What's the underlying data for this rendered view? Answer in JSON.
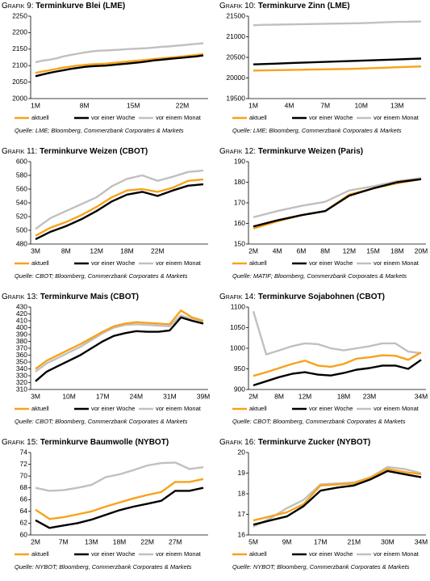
{
  "chart_data": [
    {
      "type": "line",
      "label": "Grafik 9:",
      "title": "Terminkurve Blei (LME)",
      "categories": [
        "1M",
        null,
        null,
        null,
        null,
        null,
        null,
        "8M",
        null,
        null,
        null,
        null,
        null,
        null,
        "15M",
        null,
        null,
        null,
        null,
        null,
        null,
        "22M",
        null,
        null,
        null
      ],
      "series": [
        {
          "name": "aktuell",
          "color": "#f7a21b",
          "values": [
            2078,
            2082,
            2086,
            2090,
            2094,
            2097,
            2100,
            2102,
            2104,
            2105,
            2106,
            2108,
            2110,
            2112,
            2114,
            2116,
            2118,
            2120,
            2122,
            2124,
            2126,
            2128,
            2130,
            2132,
            2135
          ]
        },
        {
          "name": "vor einer Woche",
          "color": "#000000",
          "values": [
            2068,
            2073,
            2078,
            2082,
            2086,
            2090,
            2093,
            2096,
            2098,
            2099,
            2100,
            2102,
            2104,
            2106,
            2108,
            2110,
            2113,
            2116,
            2118,
            2120,
            2122,
            2124,
            2126,
            2128,
            2131
          ]
        },
        {
          "name": "vor einem Monat",
          "color": "#c0c0c0",
          "values": [
            2110,
            2115,
            2118,
            2122,
            2128,
            2132,
            2136,
            2140,
            2143,
            2145,
            2146,
            2147,
            2148,
            2150,
            2151,
            2152,
            2153,
            2155,
            2157,
            2158,
            2160,
            2162,
            2164,
            2166,
            2168
          ]
        }
      ],
      "ylim": [
        2000,
        2250
      ],
      "yticks": [
        2000,
        2050,
        2100,
        2150,
        2200,
        2250
      ],
      "source": "Quelle: LME; Bloomberg, Commerzbank Corporates & Markets"
    },
    {
      "type": "line",
      "label": "Grafik 10:",
      "title": "Terminkurve Zinn (LME)",
      "categories": [
        "1M",
        null,
        null,
        "4M",
        null,
        null,
        "7M",
        null,
        null,
        "10M",
        null,
        null,
        "13M",
        null,
        null
      ],
      "series": [
        {
          "name": "aktuell",
          "color": "#f7a21b",
          "values": [
            20180,
            20185,
            20190,
            20195,
            20200,
            20205,
            20210,
            20215,
            20220,
            20230,
            20240,
            20250,
            20260,
            20270,
            20280
          ]
        },
        {
          "name": "vor einer Woche",
          "color": "#000000",
          "values": [
            20330,
            20340,
            20350,
            20360,
            20370,
            20380,
            20390,
            20400,
            20410,
            20420,
            20430,
            20440,
            20450,
            20460,
            20470
          ]
        },
        {
          "name": "vor einem Monat",
          "color": "#c0c0c0",
          "values": [
            21280,
            21290,
            21295,
            21300,
            21305,
            21310,
            21315,
            21320,
            21325,
            21330,
            21340,
            21350,
            21360,
            21365,
            21370
          ]
        }
      ],
      "ylim": [
        19500,
        21500
      ],
      "yticks": [
        19500,
        20000,
        20500,
        21000,
        21500
      ],
      "source": "Quelle: LME; Bloomberg, Commerzbank Corporates & Markets"
    },
    {
      "type": "line",
      "label": "Grafik 11:",
      "title": "Terminkurve Weizen (CBOT)",
      "categories": [
        "3M",
        null,
        "8M",
        null,
        "12M",
        null,
        "18M",
        null,
        "22M",
        null,
        null,
        null
      ],
      "series": [
        {
          "name": "aktuell",
          "color": "#f7a21b",
          "values": [
            492,
            504,
            512,
            522,
            534,
            548,
            558,
            560,
            556,
            562,
            572,
            574
          ]
        },
        {
          "name": "vor einer Woche",
          "color": "#000000",
          "values": [
            487,
            498,
            506,
            516,
            528,
            542,
            552,
            556,
            550,
            558,
            565,
            567
          ]
        },
        {
          "name": "vor einem Monat",
          "color": "#c0c0c0",
          "values": [
            502,
            518,
            528,
            538,
            548,
            564,
            575,
            580,
            572,
            578,
            585,
            587
          ]
        }
      ],
      "ylim": [
        480,
        600
      ],
      "yticks": [
        480,
        500,
        520,
        540,
        560,
        580,
        600
      ],
      "source": "Quelle: CBOT; Bloomberg, Commerzbank Corporates & Markets"
    },
    {
      "type": "line",
      "label": "Grafik 12:",
      "title": "Terminkurve Weizen (Paris)",
      "categories": [
        "2M",
        "4M",
        "6M",
        "8M",
        "12M",
        "15M",
        "18M",
        "20M"
      ],
      "series": [
        {
          "name": "aktuell",
          "color": "#f7a21b",
          "values": [
            157.5,
            161,
            164,
            166,
            174,
            177,
            179.5,
            181.5
          ]
        },
        {
          "name": "vor einer Woche",
          "color": "#000000",
          "values": [
            158.5,
            161.5,
            164,
            166,
            173.5,
            177,
            180,
            181.5
          ]
        },
        {
          "name": "vor einem Monat",
          "color": "#c0c0c0",
          "values": [
            163,
            166,
            168.5,
            170.5,
            176,
            178,
            180.5,
            182
          ]
        }
      ],
      "ylim": [
        150,
        190
      ],
      "yticks": [
        150,
        160,
        170,
        180,
        190
      ],
      "source": "Quelle: MATIF; Bloomberg, Commerzbank Corporates & Markets"
    },
    {
      "type": "line",
      "label": "Grafik 13:",
      "title": "Terminkurve Mais (CBOT)",
      "categories": [
        "3M",
        null,
        null,
        "10M",
        null,
        null,
        "17M",
        null,
        null,
        "24M",
        null,
        null,
        "31M",
        null,
        null,
        "39M"
      ],
      "series": [
        {
          "name": "aktuell",
          "color": "#f7a21b",
          "values": [
            340,
            352,
            360,
            368,
            376,
            385,
            394,
            402,
            406,
            408,
            407,
            406,
            405,
            425,
            415,
            410
          ]
        },
        {
          "name": "vor einer Woche",
          "color": "#000000",
          "values": [
            322,
            336,
            344,
            352,
            360,
            370,
            380,
            388,
            392,
            395,
            394,
            394,
            396,
            415,
            410,
            406
          ]
        },
        {
          "name": "vor einem Monat",
          "color": "#c0c0c0",
          "values": [
            336,
            348,
            356,
            364,
            372,
            382,
            392,
            400,
            404,
            405,
            404,
            403,
            402,
            418,
            412,
            409
          ]
        }
      ],
      "ylim": [
        310,
        430
      ],
      "yticks": [
        310,
        320,
        330,
        340,
        350,
        360,
        370,
        380,
        390,
        400,
        410,
        420,
        430
      ],
      "source": "Quelle: CBOT; Bloomberg, Commerzbank Corporates & Markets"
    },
    {
      "type": "line",
      "label": "Grafik 14:",
      "title": "Terminkurve Sojabohnen (CBOT)",
      "categories": [
        "2M",
        null,
        "8M",
        null,
        "12M",
        null,
        null,
        "18M",
        null,
        "23M",
        null,
        null,
        null,
        "34M"
      ],
      "series": [
        {
          "name": "aktuell",
          "color": "#f7a21b",
          "values": [
            933,
            942,
            952,
            962,
            970,
            958,
            955,
            962,
            975,
            978,
            983,
            982,
            972,
            990
          ]
        },
        {
          "name": "vor einer Woche",
          "color": "#000000",
          "values": [
            910,
            920,
            930,
            938,
            942,
            936,
            934,
            940,
            948,
            952,
            958,
            958,
            950,
            972
          ]
        },
        {
          "name": "vor einem Monat",
          "color": "#c0c0c0",
          "values": [
            1090,
            985,
            995,
            1005,
            1012,
            1010,
            1000,
            995,
            1000,
            1005,
            1012,
            1012,
            992,
            988
          ]
        }
      ],
      "ylim": [
        900,
        1100
      ],
      "yticks": [
        900,
        950,
        1000,
        1050,
        1100
      ],
      "source": "Quelle: CBOT; Bloomberg, Commerzbank Corporates & Markets"
    },
    {
      "type": "line",
      "label": "Grafik 15:",
      "title": "Terminkurve Baumwolle (NYBOT)",
      "categories": [
        "2M",
        null,
        "7M",
        null,
        "13M",
        null,
        "18M",
        null,
        "22M",
        null,
        "27M",
        null,
        null
      ],
      "series": [
        {
          "name": "aktuell",
          "color": "#f7a21b",
          "values": [
            64.3,
            62.7,
            63,
            63.5,
            64,
            64.8,
            65.5,
            66.2,
            66.8,
            67.3,
            69,
            69,
            69.5
          ]
        },
        {
          "name": "vor einer Woche",
          "color": "#000000",
          "values": [
            62.5,
            61.2,
            61.6,
            62,
            62.6,
            63.4,
            64.2,
            64.8,
            65.3,
            65.8,
            67.5,
            67.5,
            68
          ]
        },
        {
          "name": "vor einem Monat",
          "color": "#c0c0c0",
          "values": [
            68,
            67.5,
            67.6,
            68,
            68.5,
            69.8,
            70.3,
            71,
            71.8,
            72.2,
            72.3,
            71.2,
            71.5
          ]
        }
      ],
      "ylim": [
        60,
        74
      ],
      "yticks": [
        60,
        62,
        64,
        66,
        68,
        70,
        72,
        74
      ],
      "source": "Quelle: NYBOT; Bloomberg, Commerzbank Corporates & Markets"
    },
    {
      "type": "line",
      "label": "Grafik 16:",
      "title": "Terminkurve Zucker (NYBOT)",
      "categories": [
        "5M",
        null,
        "9M",
        null,
        "17M",
        null,
        "21M",
        null,
        "30M",
        null,
        "34M"
      ],
      "series": [
        {
          "name": "aktuell",
          "color": "#f7a21b",
          "values": [
            16.7,
            16.9,
            17.1,
            17.5,
            18.4,
            18.45,
            18.5,
            18.8,
            19.2,
            19.05,
            18.95
          ]
        },
        {
          "name": "vor einer Woche",
          "color": "#000000",
          "values": [
            16.5,
            16.7,
            16.9,
            17.4,
            18.15,
            18.3,
            18.4,
            18.7,
            19.1,
            18.95,
            18.8
          ]
        },
        {
          "name": "vor einem Monat",
          "color": "#c0c0c0",
          "values": [
            16.4,
            16.8,
            17.3,
            17.7,
            18.45,
            18.5,
            18.55,
            18.8,
            19.3,
            19.2,
            19.0
          ]
        }
      ],
      "ylim": [
        16,
        20
      ],
      "yticks": [
        16,
        17,
        18,
        19,
        20
      ],
      "source": "Quelle: NYBOT; Bloomberg, Commerzbank Corporates & Markets"
    }
  ]
}
